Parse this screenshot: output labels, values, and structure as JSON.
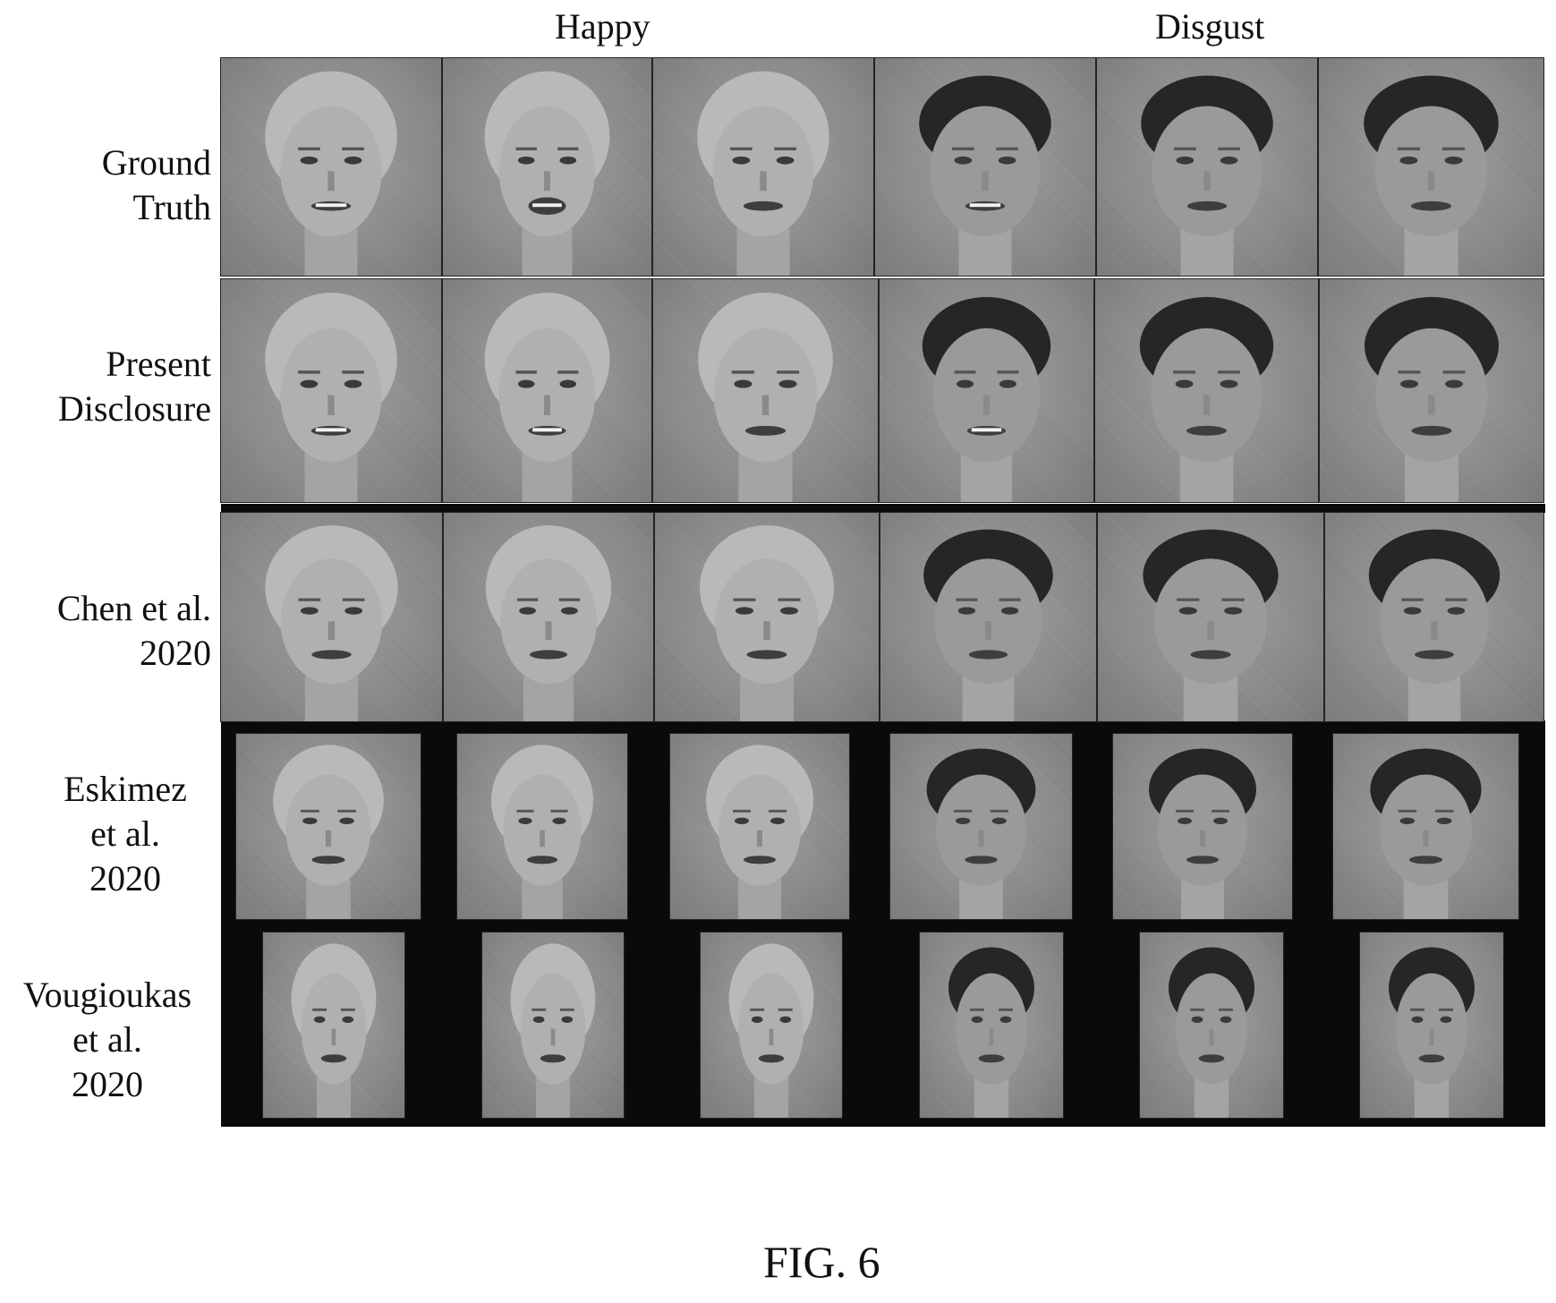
{
  "columns": {
    "happy": "Happy",
    "disgust": "Disgust"
  },
  "rows": [
    {
      "label": "Ground\nTruth"
    },
    {
      "label": "Present\nDisclosure"
    },
    {
      "label": "Chen et al.\n2020"
    },
    {
      "label": "Eskimez\net al.\n2020"
    },
    {
      "label": "Vougioukas\net al.\n2020"
    }
  ],
  "figure_label": "FIG. 6"
}
